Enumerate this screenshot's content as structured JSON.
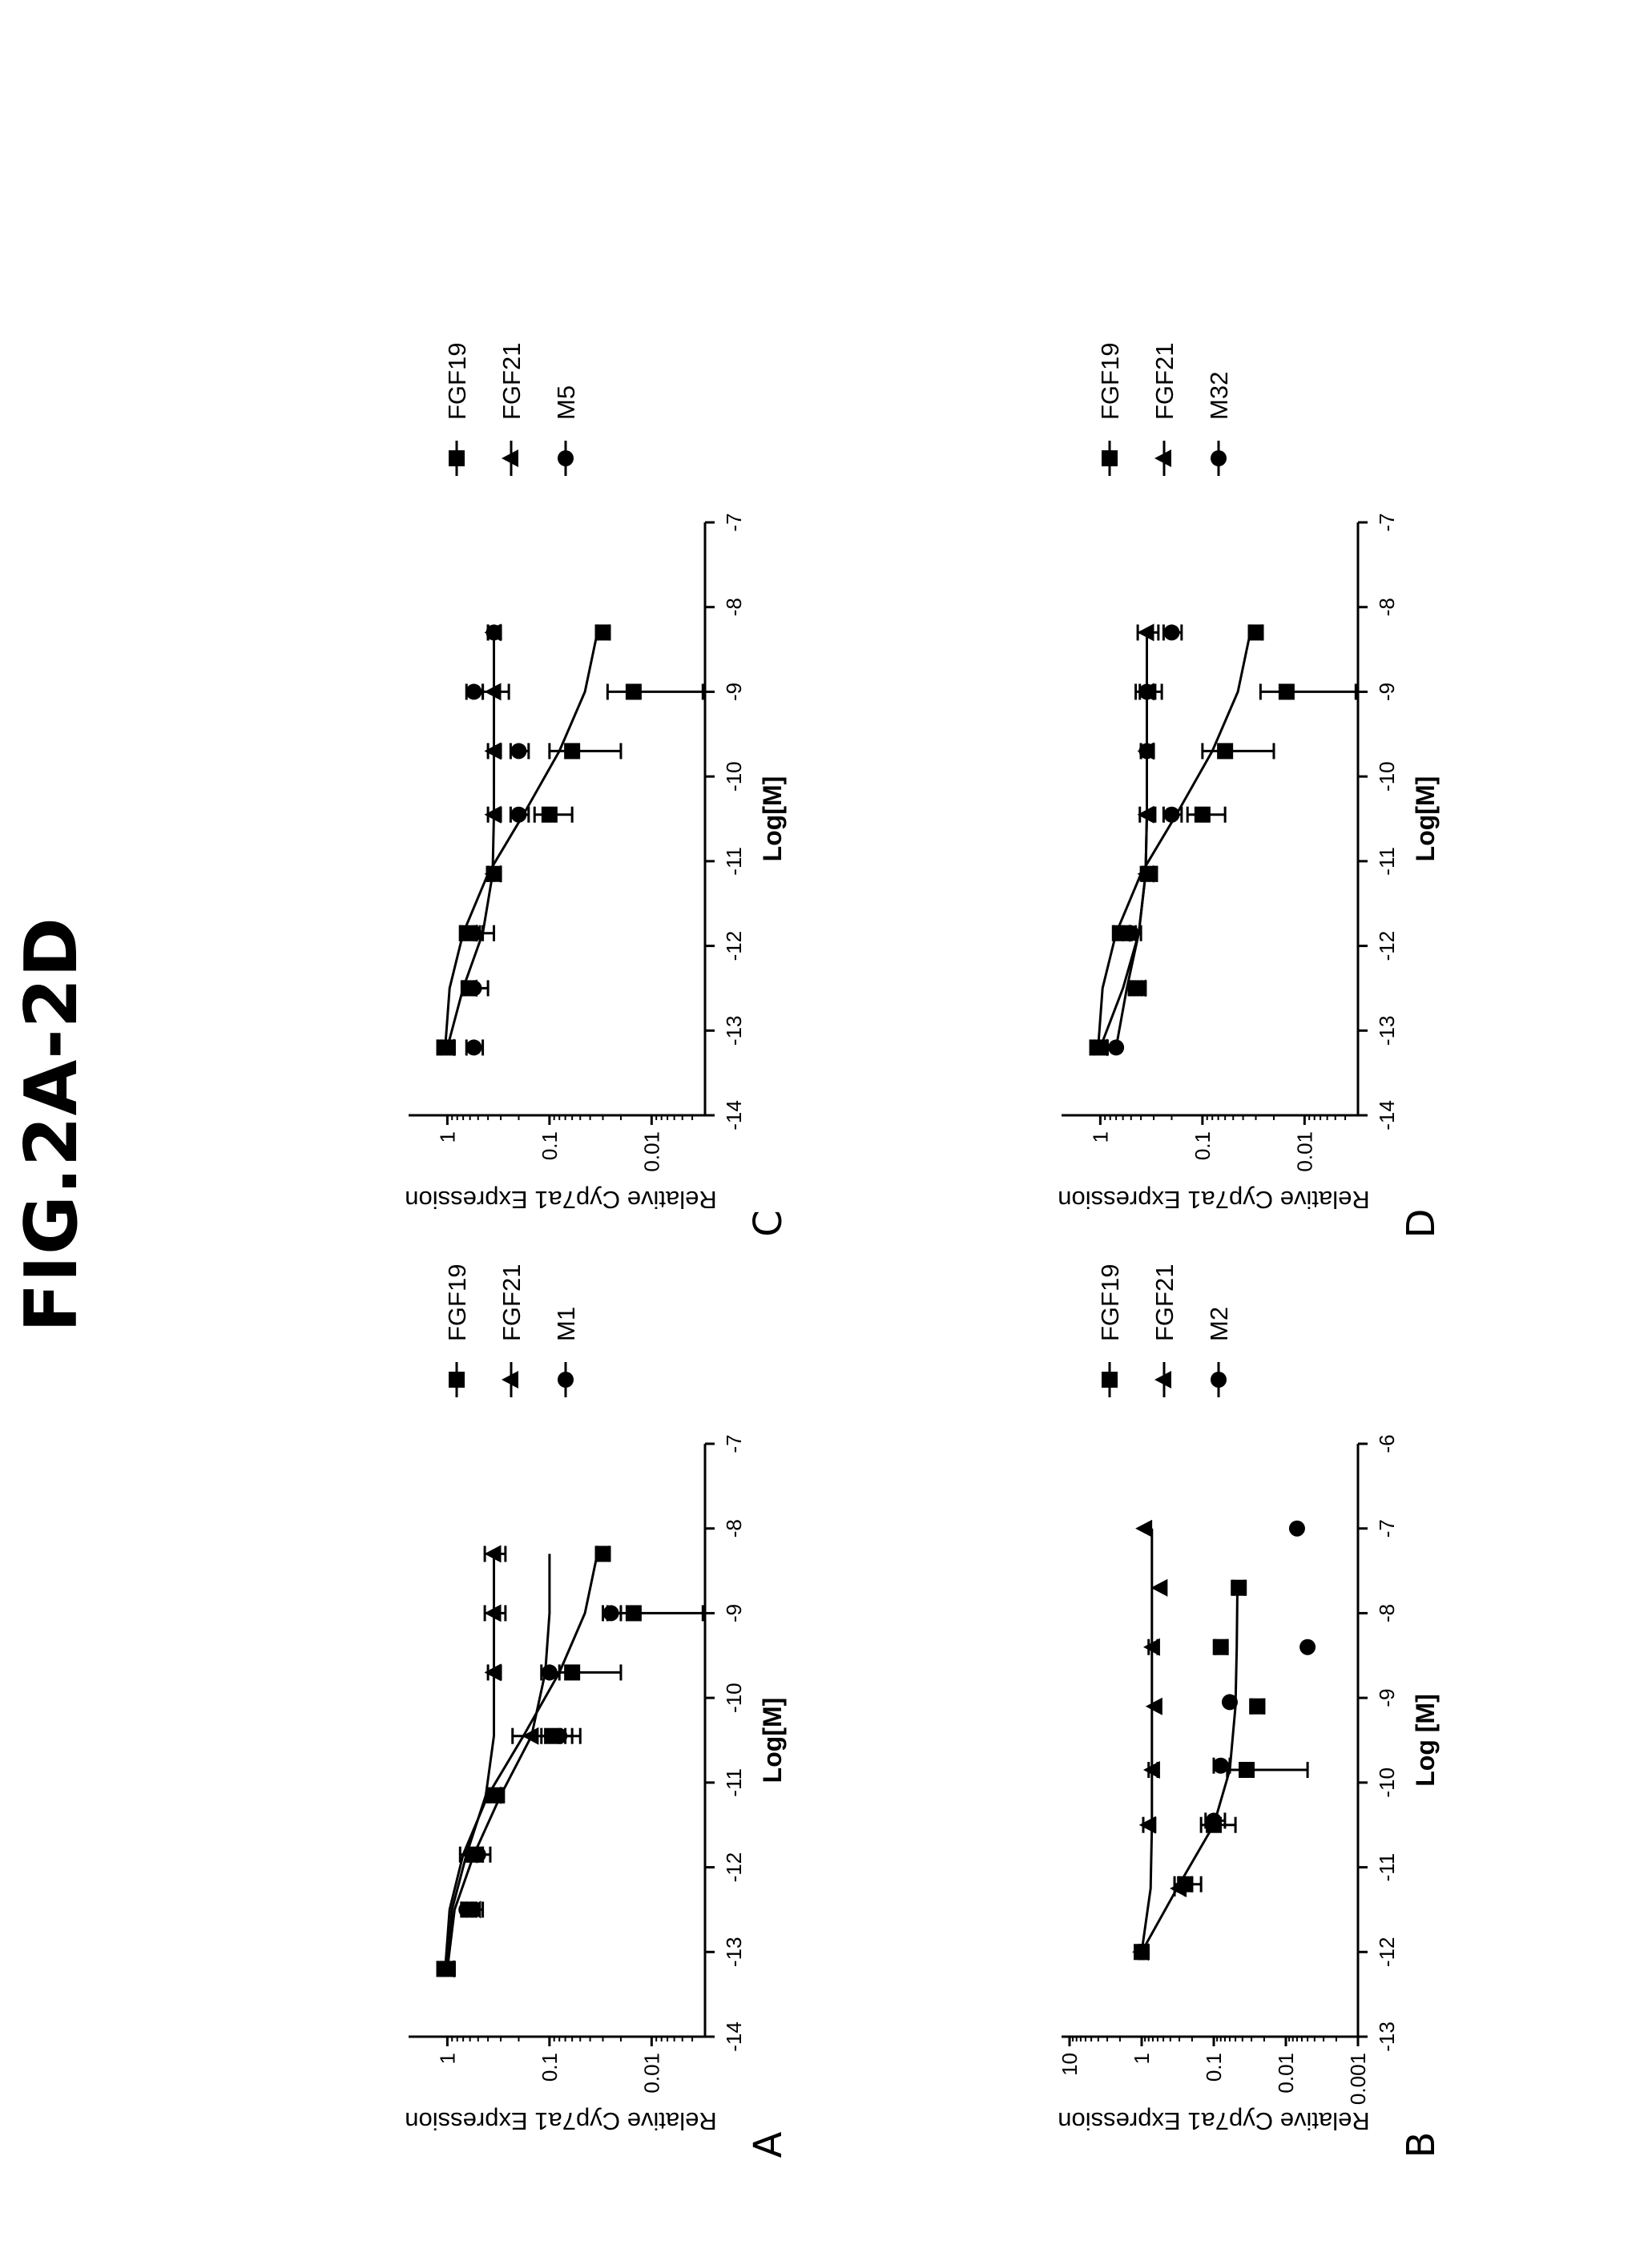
{
  "figure_title": "FIG.2A-2D",
  "chart_data": [
    {
      "panel": "A",
      "type": "scatter",
      "x_scale": "linear",
      "y_scale": "log",
      "xlabel": "Log[M]",
      "ylabel": "Relative Cyp7a1 Expression",
      "xlim": [
        -14,
        -7
      ],
      "ylim": [
        0.003,
        2
      ],
      "xticks": [
        "-14",
        "-13",
        "-12",
        "-11",
        "-10",
        "-9",
        "-8",
        "-7"
      ],
      "yticks": [
        {
          "v": 1,
          "label": "1"
        },
        {
          "v": 0.1,
          "label": "0.1"
        },
        {
          "v": 0.01,
          "label": "0.01"
        }
      ],
      "series": [
        {
          "name": "FGF19",
          "marker": "square",
          "x": [
            -13.2,
            -12.5,
            -11.85,
            -11.15,
            -10.45,
            -9.7,
            -9.0,
            -8.3
          ],
          "y": [
            1.05,
            0.62,
            0.55,
            0.33,
            0.09,
            0.06,
            0.015,
            0.03
          ],
          "err": [
            0.2,
            0.1,
            0.1,
            0.05,
            0.03,
            0.04,
            0.012,
            0.004
          ],
          "fit": [
            1.05,
            0.95,
            0.7,
            0.4,
            0.18,
            0.08,
            0.045,
            0.034
          ]
        },
        {
          "name": "FGF21",
          "marker": "triangle",
          "x": [
            -13.2,
            -12.5,
            -11.85,
            -11.15,
            -10.45,
            -9.7,
            -9.0,
            -8.3
          ],
          "y": [
            1.0,
            0.55,
            0.6,
            0.35,
            0.15,
            0.35,
            0.35,
            0.35
          ],
          "err": [
            0.15,
            0.1,
            0.15,
            0.05,
            0.08,
            0.05,
            0.08,
            0.08
          ],
          "fit": [
            1.0,
            0.9,
            0.65,
            0.42,
            0.35,
            0.35,
            0.35,
            0.35
          ]
        },
        {
          "name": "M1",
          "marker": "circle",
          "x": [
            -13.2,
            -12.5,
            -11.85,
            -11.15,
            -10.45,
            -9.7,
            -9.0,
            -8.3
          ],
          "y": [
            1.0,
            0.65,
            0.5,
            0.35,
            0.08,
            0.1,
            0.025,
            0.03
          ],
          "err": [
            0.1,
            0.08,
            0.12,
            0.06,
            0.03,
            0.02,
            0.005,
            0.004
          ],
          "fit": [
            1.0,
            0.85,
            0.55,
            0.3,
            0.15,
            0.11,
            0.1,
            0.1
          ]
        }
      ],
      "legend": [
        "FGF19",
        "FGF21",
        "M1"
      ]
    },
    {
      "panel": "B",
      "type": "scatter",
      "x_scale": "linear",
      "y_scale": "log",
      "xlabel": "Log [M]",
      "ylabel": "Relative Cyp7a1 Expression",
      "xlim": [
        -13,
        -6
      ],
      "ylim": [
        0.001,
        10
      ],
      "xticks": [
        "-13",
        "-12",
        "-11",
        "-10",
        "-9",
        "-8",
        "-7",
        "-6"
      ],
      "yticks": [
        {
          "v": 10,
          "label": "10"
        },
        {
          "v": 1,
          "label": "1"
        },
        {
          "v": 0.1,
          "label": "0.1"
        },
        {
          "v": 0.01,
          "label": "0.01"
        },
        {
          "v": 0.001,
          "label": "0.001"
        }
      ],
      "series": [
        {
          "name": "FGF19",
          "marker": "square",
          "x": [
            -12.0,
            -11.2,
            -10.5,
            -9.85,
            -9.1,
            -8.4,
            -7.7
          ],
          "y": [
            1.0,
            0.25,
            0.1,
            0.035,
            0.025,
            0.08,
            0.045
          ],
          "err": [
            0.1,
            0.1,
            0.05,
            0.03,
            0.005,
            0.015,
            0.008
          ],
          "fit": [
            1.0,
            0.3,
            0.1,
            0.06,
            0.05,
            0.048,
            0.047
          ]
        },
        {
          "name": "FGF21",
          "marker": "triangle",
          "x": [
            -12.0,
            -11.25,
            -10.5,
            -9.85,
            -9.1,
            -8.4,
            -7.7,
            -7.0
          ],
          "y": [
            1.0,
            0.3,
            0.8,
            0.7,
            0.65,
            0.7,
            0.55,
            0.9
          ],
          "err": [
            0.05,
            0.05,
            0.15,
            0.1,
            0.0,
            0.1,
            0.0,
            0.0
          ],
          "fit": [
            1.0,
            0.75,
            0.72,
            0.72,
            0.72,
            0.72,
            0.72,
            0.72
          ]
        },
        {
          "name": "M2",
          "marker": "circle",
          "x": [
            -12.0,
            -11.2,
            -10.45,
            -9.8,
            -9.05,
            -8.4,
            -7.0
          ],
          "y": [
            1.0,
            0.25,
            0.1,
            0.08,
            0.06,
            0.005,
            0.007
          ],
          "err": [
            0.05,
            0.05,
            0.03,
            0.02,
            0.0,
            0.0,
            0.0
          ],
          "fit": []
        }
      ],
      "legend": [
        "FGF19",
        "FGF21",
        "M2"
      ]
    },
    {
      "panel": "C",
      "type": "scatter",
      "x_scale": "linear",
      "y_scale": "log",
      "xlabel": "Log[M]",
      "ylabel": "Relative Cyp7a1 Expression",
      "xlim": [
        -14,
        -7
      ],
      "ylim": [
        0.003,
        2
      ],
      "xticks": [
        "-14",
        "-13",
        "-12",
        "-11",
        "-10",
        "-9",
        "-8",
        "-7"
      ],
      "yticks": [
        {
          "v": 1,
          "label": "1"
        },
        {
          "v": 0.1,
          "label": "0.1"
        },
        {
          "v": 0.01,
          "label": "0.01"
        }
      ],
      "series": [
        {
          "name": "FGF19",
          "marker": "square",
          "x": [
            -13.2,
            -12.5,
            -11.85,
            -11.15,
            -10.45,
            -9.7,
            -9.0,
            -8.3
          ],
          "y": [
            1.05,
            0.62,
            0.6,
            0.35,
            0.1,
            0.06,
            0.015,
            0.03
          ],
          "err": [
            0.2,
            0.08,
            0.12,
            0.05,
            0.04,
            0.04,
            0.012,
            0.004
          ],
          "fit": [
            1.05,
            0.95,
            0.7,
            0.4,
            0.18,
            0.08,
            0.045,
            0.034
          ]
        },
        {
          "name": "FGF21",
          "marker": "triangle",
          "x": [
            -13.2,
            -12.5,
            -11.85,
            -11.15,
            -10.45,
            -9.7,
            -9.0,
            -8.3
          ],
          "y": [
            1.0,
            0.6,
            0.6,
            0.35,
            0.35,
            0.35,
            0.35,
            0.35
          ],
          "err": [
            0.15,
            0.08,
            0.15,
            0.05,
            0.05,
            0.05,
            0.1,
            0.05
          ],
          "fit": [
            1.0,
            0.7,
            0.45,
            0.36,
            0.35,
            0.35,
            0.35,
            0.35
          ]
        },
        {
          "name": "M5",
          "marker": "circle",
          "x": [
            -13.2,
            -12.5,
            -11.85,
            -11.15,
            -10.45,
            -9.7,
            -9.0,
            -8.3
          ],
          "y": [
            0.55,
            0.55,
            0.55,
            0.35,
            0.2,
            0.2,
            0.55,
            0.35
          ],
          "err": [
            0.1,
            0.15,
            0.2,
            0.05,
            0.04,
            0.04,
            0.1,
            0.05
          ],
          "fit": []
        }
      ],
      "legend": [
        "FGF19",
        "FGF21",
        "M5"
      ]
    },
    {
      "panel": "D",
      "type": "scatter",
      "x_scale": "linear",
      "y_scale": "log",
      "xlabel": "Log[M]",
      "ylabel": "Relative Cyp7a1 Expression",
      "xlim": [
        -14,
        -7
      ],
      "ylim": [
        0.003,
        2
      ],
      "xticks": [
        "-14",
        "-13",
        "-12",
        "-11",
        "-10",
        "-9",
        "-8",
        "-7"
      ],
      "yticks": [
        {
          "v": 1,
          "label": "1"
        },
        {
          "v": 0.1,
          "label": "0.1"
        },
        {
          "v": 0.01,
          "label": "0.01"
        }
      ],
      "series": [
        {
          "name": "FGF19",
          "marker": "square",
          "x": [
            -13.2,
            -12.5,
            -11.85,
            -11.15,
            -10.45,
            -9.7,
            -9.0,
            -8.3
          ],
          "y": [
            1.05,
            0.45,
            0.62,
            0.33,
            0.1,
            0.06,
            0.015,
            0.03
          ],
          "err": [
            0.2,
            0.06,
            0.12,
            0.05,
            0.04,
            0.04,
            0.012,
            0.004
          ],
          "fit": [
            1.05,
            0.95,
            0.7,
            0.4,
            0.18,
            0.08,
            0.045,
            0.034
          ]
        },
        {
          "name": "FGF21",
          "marker": "triangle",
          "x": [
            -13.2,
            -12.5,
            -11.85,
            -11.15,
            -10.45,
            -9.7,
            -9.0,
            -8.3
          ],
          "y": [
            1.0,
            0.42,
            0.6,
            0.35,
            0.35,
            0.35,
            0.35,
            0.35
          ],
          "err": [
            0.15,
            0.06,
            0.15,
            0.05,
            0.06,
            0.05,
            0.1,
            0.08
          ],
          "fit": [
            1.0,
            0.6,
            0.42,
            0.36,
            0.35,
            0.35,
            0.35,
            0.35
          ]
        },
        {
          "name": "M32",
          "marker": "circle",
          "x": [
            -13.2,
            -12.5,
            -11.85,
            -11.15,
            -10.45,
            -9.7,
            -9.0,
            -8.3
          ],
          "y": [
            0.7,
            0.45,
            0.5,
            0.33,
            0.2,
            0.35,
            0.35,
            0.2
          ],
          "err": [
            0.0,
            0.06,
            0.1,
            0.05,
            0.04,
            0.05,
            0.06,
            0.04
          ],
          "fit": [
            0.7,
            0.55,
            0.42,
            0.36,
            0.35,
            0.35,
            0.35,
            0.35
          ]
        }
      ],
      "legend": [
        "FGF19",
        "FGF21",
        "M32"
      ]
    }
  ]
}
